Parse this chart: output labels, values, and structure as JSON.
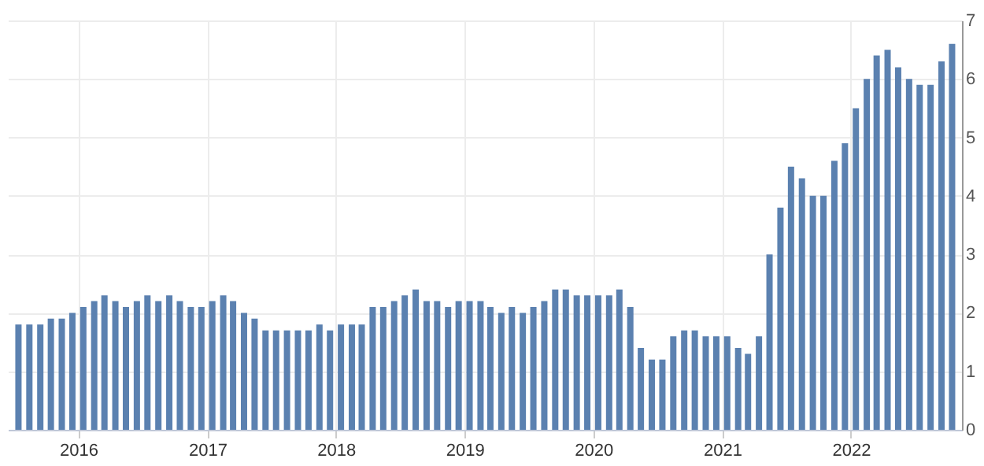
{
  "chart_data": {
    "type": "bar",
    "x": [
      "2015-07",
      "2015-08",
      "2015-09",
      "2015-10",
      "2015-11",
      "2015-12",
      "2016-01",
      "2016-02",
      "2016-03",
      "2016-04",
      "2016-05",
      "2016-06",
      "2016-07",
      "2016-08",
      "2016-09",
      "2016-10",
      "2016-11",
      "2016-12",
      "2017-01",
      "2017-02",
      "2017-03",
      "2017-04",
      "2017-05",
      "2017-06",
      "2017-07",
      "2017-08",
      "2017-09",
      "2017-10",
      "2017-11",
      "2017-12",
      "2018-01",
      "2018-02",
      "2018-03",
      "2018-04",
      "2018-05",
      "2018-06",
      "2018-07",
      "2018-08",
      "2018-09",
      "2018-10",
      "2018-11",
      "2018-12",
      "2019-01",
      "2019-02",
      "2019-03",
      "2019-04",
      "2019-05",
      "2019-06",
      "2019-07",
      "2019-08",
      "2019-09",
      "2019-10",
      "2019-11",
      "2019-12",
      "2020-01",
      "2020-02",
      "2020-03",
      "2020-04",
      "2020-05",
      "2020-06",
      "2020-07",
      "2020-08",
      "2020-09",
      "2020-10",
      "2020-11",
      "2020-12",
      "2021-01",
      "2021-02",
      "2021-03",
      "2021-04",
      "2021-05",
      "2021-06",
      "2021-07",
      "2021-08",
      "2021-09",
      "2021-10",
      "2021-11",
      "2021-12",
      "2022-01",
      "2022-02",
      "2022-03",
      "2022-04",
      "2022-05",
      "2022-06",
      "2022-07",
      "2022-08",
      "2022-09",
      "2022-10"
    ],
    "values": [
      1.8,
      1.8,
      1.8,
      1.9,
      1.9,
      2.0,
      2.1,
      2.2,
      2.3,
      2.2,
      2.1,
      2.2,
      2.3,
      2.2,
      2.3,
      2.2,
      2.1,
      2.1,
      2.2,
      2.3,
      2.2,
      2.0,
      1.9,
      1.7,
      1.7,
      1.7,
      1.7,
      1.7,
      1.8,
      1.7,
      1.8,
      1.8,
      1.8,
      2.1,
      2.1,
      2.2,
      2.3,
      2.4,
      2.2,
      2.2,
      2.1,
      2.2,
      2.2,
      2.2,
      2.1,
      2.0,
      2.1,
      2.0,
      2.1,
      2.2,
      2.4,
      2.4,
      2.3,
      2.3,
      2.3,
      2.3,
      2.4,
      2.1,
      1.4,
      1.2,
      1.2,
      1.6,
      1.7,
      1.7,
      1.6,
      1.6,
      1.6,
      1.4,
      1.3,
      1.6,
      3.0,
      3.8,
      4.5,
      4.3,
      4.0,
      4.0,
      4.6,
      4.9,
      5.5,
      6.0,
      6.4,
      6.5,
      6.2,
      6.0,
      5.9,
      5.9,
      6.3,
      6.6
    ],
    "color": "#5b81b0",
    "xlim": [
      "2015-06-15",
      "2022-11-12"
    ],
    "xticks": [
      {
        "value": "2016-01-01",
        "label": "2016"
      },
      {
        "value": "2017-01-01",
        "label": "2017"
      },
      {
        "value": "2018-01-01",
        "label": "2018"
      },
      {
        "value": "2019-01-01",
        "label": "2019"
      },
      {
        "value": "2020-01-01",
        "label": "2020"
      },
      {
        "value": "2021-01-01",
        "label": "2021"
      },
      {
        "value": "2022-01-01",
        "label": "2022"
      }
    ],
    "ylim": [
      0,
      7
    ],
    "yticks": [
      0,
      1,
      2,
      3,
      4,
      5,
      6,
      7
    ],
    "grid": true
  }
}
